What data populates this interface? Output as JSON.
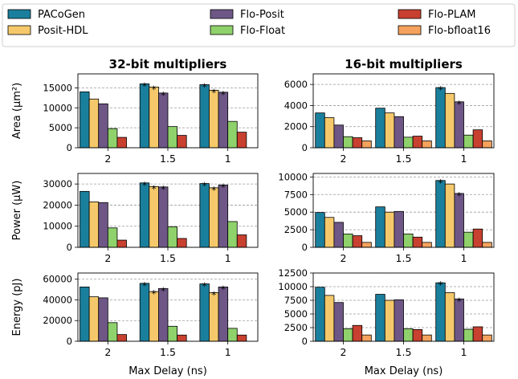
{
  "chart_data": {
    "type": "bar",
    "legend": {
      "placement": "top",
      "entries": [
        {
          "name": "PACoGen",
          "color": "#1a7f9c"
        },
        {
          "name": "Posit-HDL",
          "color": "#f5c96b"
        },
        {
          "name": "Flo-Posit",
          "color": "#6e5786"
        },
        {
          "name": "Flo-Float",
          "color": "#8fd16b"
        },
        {
          "name": "Flo-PLAM",
          "color": "#c8402f"
        },
        {
          "name": "Flo-bfloat16",
          "color": "#f4a25d"
        }
      ]
    },
    "columns": [
      {
        "title": "32-bit multipliers"
      },
      {
        "title": "16-bit multipliers"
      }
    ],
    "xlabel": "Max Delay (ns)",
    "categories": [
      "2",
      "1.5",
      "1"
    ],
    "grid": true,
    "panels": [
      {
        "row": 0,
        "col": 0,
        "ylabel": "Area (µm²)",
        "ylim": [
          0,
          18500
        ],
        "yticks": [
          0,
          5000,
          10000,
          15000
        ],
        "values": [
          [
            14000,
            12200,
            11000,
            4800,
            2600,
            null
          ],
          [
            16000,
            15200,
            13700,
            5300,
            3100,
            null
          ],
          [
            15800,
            14400,
            13900,
            6600,
            3900,
            null
          ]
        ],
        "stars": [
          [
            false,
            false,
            false,
            false,
            false,
            false
          ],
          [
            true,
            true,
            true,
            false,
            false,
            false
          ],
          [
            true,
            true,
            true,
            false,
            false,
            false
          ]
        ]
      },
      {
        "row": 0,
        "col": 1,
        "ylabel": "",
        "ylim": [
          0,
          7000
        ],
        "yticks": [
          0,
          2000,
          4000,
          6000
        ],
        "values": [
          [
            3300,
            2850,
            2150,
            1050,
            950,
            650
          ],
          [
            3750,
            3300,
            2950,
            1000,
            1100,
            650
          ],
          [
            5700,
            5150,
            4350,
            1200,
            1700,
            650
          ]
        ],
        "stars": [
          [
            false,
            false,
            false,
            false,
            false,
            false
          ],
          [
            false,
            false,
            false,
            false,
            false,
            false
          ],
          [
            true,
            false,
            true,
            false,
            false,
            false
          ]
        ]
      },
      {
        "row": 1,
        "col": 0,
        "ylabel": "Power (µW)",
        "ylim": [
          0,
          35000
        ],
        "yticks": [
          0,
          10000,
          20000,
          30000
        ],
        "values": [
          [
            26500,
            21500,
            21200,
            9200,
            3400,
            null
          ],
          [
            30500,
            28800,
            28600,
            9700,
            4200,
            null
          ],
          [
            30200,
            28200,
            29500,
            12200,
            5900,
            null
          ]
        ],
        "stars": [
          [
            false,
            false,
            false,
            false,
            false,
            false
          ],
          [
            true,
            true,
            true,
            false,
            false,
            false
          ],
          [
            true,
            true,
            true,
            false,
            false,
            false
          ]
        ]
      },
      {
        "row": 1,
        "col": 1,
        "ylabel": "",
        "ylim": [
          0,
          10500
        ],
        "yticks": [
          0,
          2500,
          5000,
          7500,
          10000
        ],
        "values": [
          [
            4950,
            4250,
            3550,
            1900,
            1650,
            700
          ],
          [
            5750,
            5000,
            5100,
            1900,
            1450,
            700
          ],
          [
            9500,
            9000,
            7650,
            2150,
            2600,
            700
          ]
        ],
        "stars": [
          [
            false,
            false,
            false,
            false,
            false,
            false
          ],
          [
            false,
            false,
            false,
            false,
            false,
            false
          ],
          [
            true,
            false,
            true,
            false,
            false,
            false
          ]
        ]
      },
      {
        "row": 2,
        "col": 0,
        "ylabel": "Energy (pJ)",
        "ylim": [
          0,
          66000
        ],
        "yticks": [
          0,
          20000,
          40000,
          60000
        ],
        "values": [
          [
            52500,
            43000,
            42000,
            18000,
            6500,
            null
          ],
          [
            56000,
            48000,
            51000,
            14500,
            6000,
            null
          ],
          [
            55500,
            47000,
            52500,
            12500,
            6000,
            null
          ]
        ],
        "stars": [
          [
            false,
            false,
            false,
            false,
            false,
            false
          ],
          [
            true,
            true,
            true,
            false,
            false,
            false
          ],
          [
            true,
            true,
            true,
            false,
            false,
            false
          ]
        ]
      },
      {
        "row": 2,
        "col": 1,
        "ylabel": "",
        "ylim": [
          0,
          12500
        ],
        "yticks": [
          0,
          2500,
          5000,
          7500,
          10000,
          12500
        ],
        "values": [
          [
            9900,
            8400,
            7100,
            2300,
            2900,
            1150
          ],
          [
            8600,
            7500,
            7600,
            2300,
            2150,
            1150
          ],
          [
            10700,
            8900,
            7750,
            2200,
            2650,
            1150
          ]
        ],
        "stars": [
          [
            false,
            false,
            false,
            false,
            false,
            false
          ],
          [
            false,
            false,
            false,
            false,
            false,
            false
          ],
          [
            true,
            false,
            true,
            false,
            false,
            false
          ]
        ]
      }
    ]
  }
}
